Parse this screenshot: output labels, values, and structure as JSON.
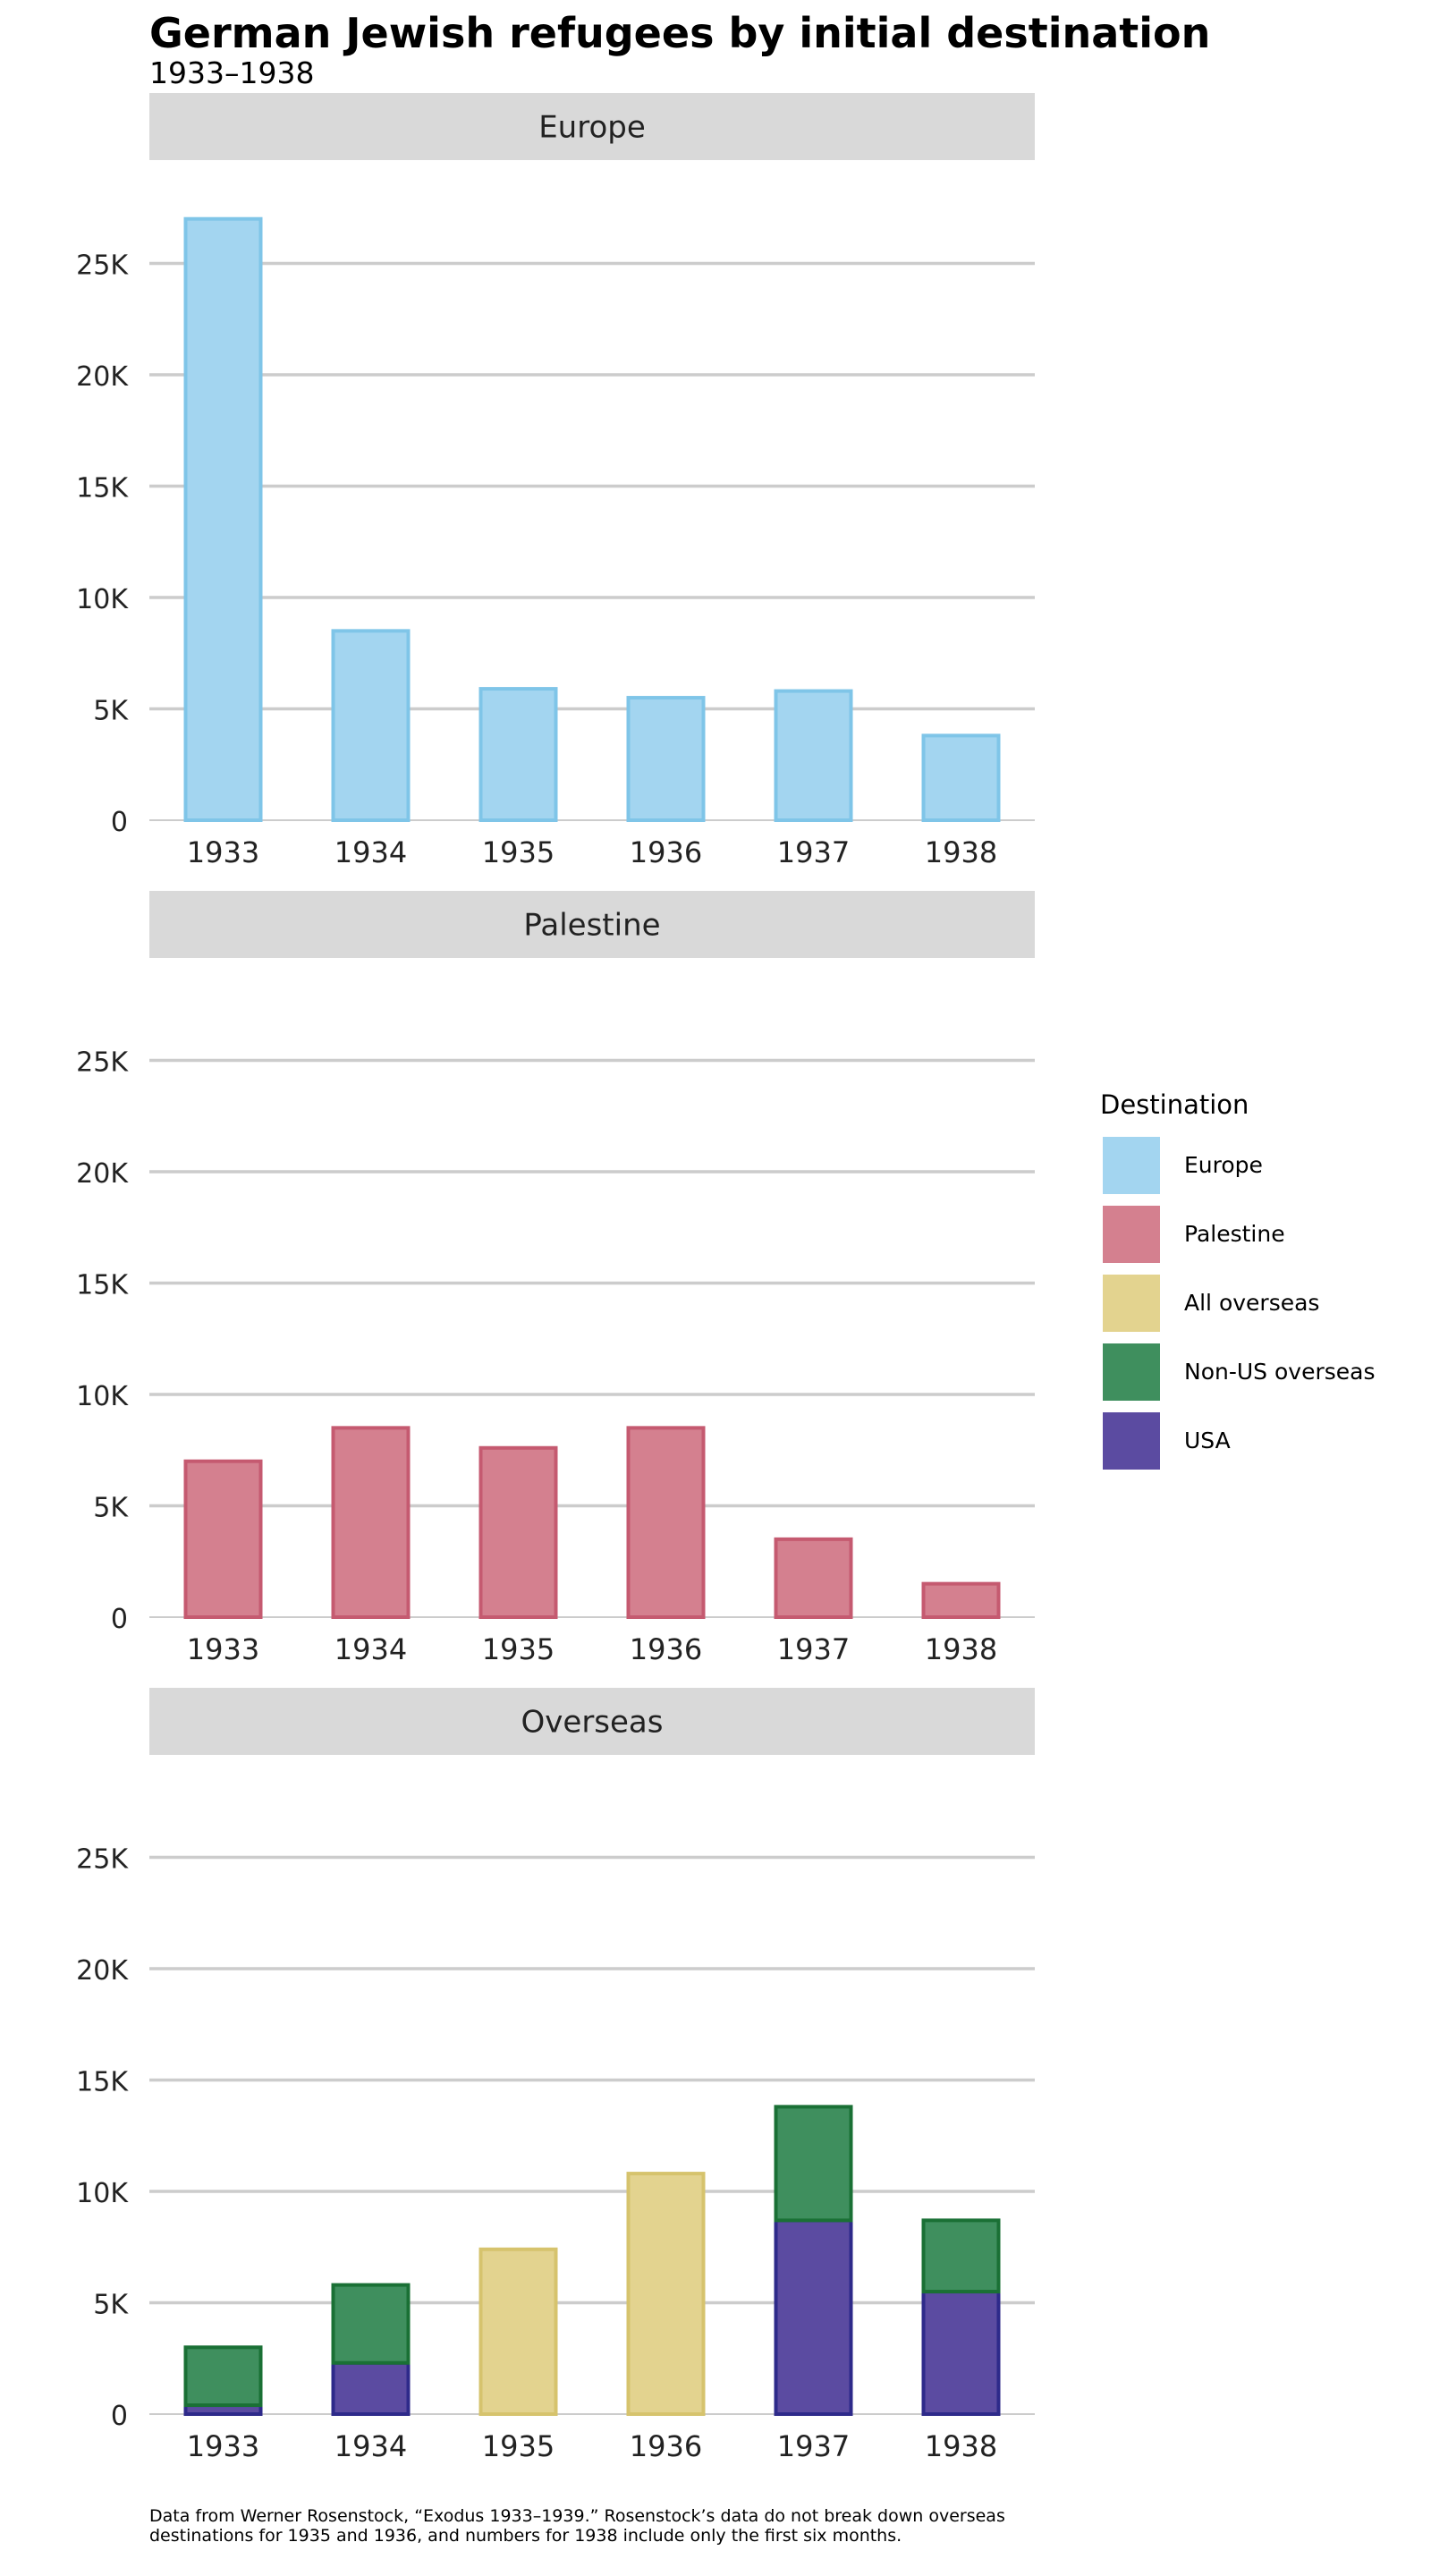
{
  "title": "German Jewish refugees by initial destination",
  "subtitle": "1933–1938",
  "caption_line1": "Data from Werner Rosenstock, “Exodus 1933–1939.” Rosenstock’s data do not break down overseas",
  "caption_line2": "destinations for 1935 and 1936, and numbers for 1938 include only the first six months.",
  "colors": {
    "Europe": {
      "fill": "#a3d5f0",
      "stroke": "#7fc5e8"
    },
    "Palestine": {
      "fill": "#d4808f",
      "stroke": "#c55a70"
    },
    "All overseas": {
      "fill": "#e3d38f",
      "stroke": "#d6c36d"
    },
    "Non-US overseas": {
      "fill": "#3f8f5e",
      "stroke": "#1a7035"
    },
    "USA": {
      "fill": "#5b4ba1",
      "stroke": "#2e2a8a"
    },
    "strip_bg": "#d9d9d9",
    "grid": "#cccccc"
  },
  "legend": {
    "title": "Destination",
    "items": [
      {
        "label": "Europe",
        "key": "Europe"
      },
      {
        "label": "Palestine",
        "key": "Palestine"
      },
      {
        "label": "All overseas",
        "key": "All overseas"
      },
      {
        "label": "Non-US overseas",
        "key": "Non-US overseas"
      },
      {
        "label": "USA",
        "key": "USA"
      }
    ]
  },
  "chart_data": [
    {
      "type": "bar",
      "facet": "Europe",
      "categories": [
        "1933",
        "1934",
        "1935",
        "1936",
        "1937",
        "1938"
      ],
      "series": [
        {
          "name": "Europe",
          "values": [
            27000,
            8500,
            5900,
            5500,
            5800,
            3800
          ]
        }
      ],
      "y_ticks": [
        0,
        5000,
        10000,
        15000,
        20000,
        25000
      ],
      "y_tick_labels": [
        "0",
        "5K",
        "10K",
        "15K",
        "20K",
        "25K"
      ],
      "ylim": [
        0,
        28000
      ]
    },
    {
      "type": "bar",
      "facet": "Palestine",
      "categories": [
        "1933",
        "1934",
        "1935",
        "1936",
        "1937",
        "1938"
      ],
      "series": [
        {
          "name": "Palestine",
          "values": [
            7000,
            8500,
            7600,
            8500,
            3500,
            1500
          ]
        }
      ],
      "y_ticks": [
        0,
        5000,
        10000,
        15000,
        20000,
        25000
      ],
      "y_tick_labels": [
        "0",
        "5K",
        "10K",
        "15K",
        "20K",
        "25K"
      ],
      "ylim": [
        0,
        28000
      ]
    },
    {
      "type": "bar",
      "facet": "Overseas",
      "stacked": true,
      "categories": [
        "1933",
        "1934",
        "1935",
        "1936",
        "1937",
        "1938"
      ],
      "series": [
        {
          "name": "USA",
          "values": [
            400,
            2300,
            0,
            0,
            8700,
            5500
          ]
        },
        {
          "name": "Non-US overseas",
          "values": [
            2600,
            3500,
            0,
            0,
            5100,
            3200
          ]
        },
        {
          "name": "All overseas",
          "values": [
            0,
            0,
            7400,
            10800,
            0,
            0
          ]
        }
      ],
      "y_ticks": [
        0,
        5000,
        10000,
        15000,
        20000,
        25000
      ],
      "y_tick_labels": [
        "0",
        "5K",
        "10K",
        "15K",
        "20K",
        "25K"
      ],
      "ylim": [
        0,
        28000
      ]
    }
  ]
}
